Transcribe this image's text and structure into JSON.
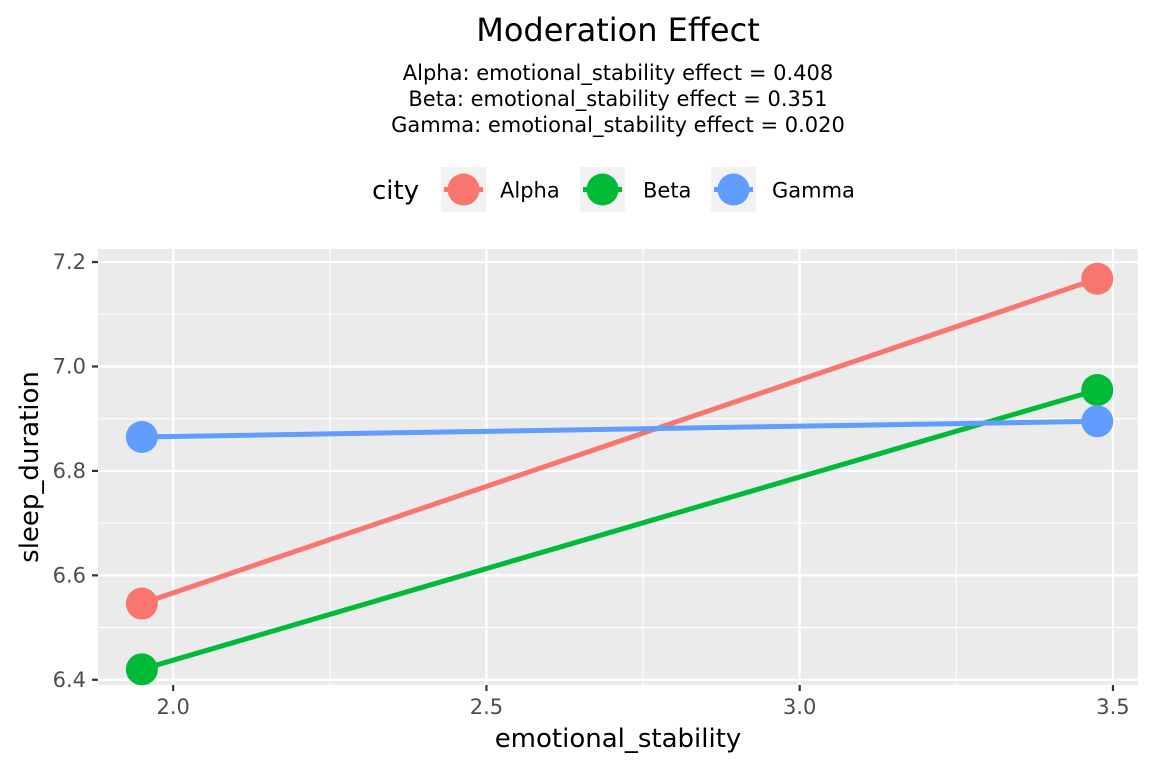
{
  "chart_data": {
    "type": "line",
    "title": "Moderation Effect",
    "subtitle_lines": [
      "Alpha: emotional_stability effect = 0.408",
      "Beta: emotional_stability effect = 0.351",
      "Gamma: emotional_stability effect = 0.020"
    ],
    "xlabel": "emotional_stability",
    "ylabel": "sleep_duration",
    "xlim": [
      1.88,
      3.54
    ],
    "ylim": [
      6.39,
      7.225
    ],
    "x_ticks": [
      2.0,
      2.5,
      3.0,
      3.5
    ],
    "x_tick_labels": [
      "2.0",
      "2.5",
      "3.0",
      "3.5"
    ],
    "y_ticks": [
      6.4,
      6.6,
      6.8,
      7.0,
      7.2
    ],
    "y_tick_labels": [
      "6.4",
      "6.6",
      "6.8",
      "7.0",
      "7.2"
    ],
    "grid": true,
    "legend": {
      "title": "city",
      "position": "top"
    },
    "series": [
      {
        "name": "Alpha",
        "color": "#F8766D",
        "x": [
          1.95,
          3.475
        ],
        "y": [
          6.546,
          7.168
        ]
      },
      {
        "name": "Beta",
        "color": "#00BA38",
        "x": [
          1.95,
          3.475
        ],
        "y": [
          6.42,
          6.955
        ]
      },
      {
        "name": "Gamma",
        "color": "#619CFF",
        "x": [
          1.95,
          3.475
        ],
        "y": [
          6.865,
          6.895
        ]
      }
    ]
  }
}
